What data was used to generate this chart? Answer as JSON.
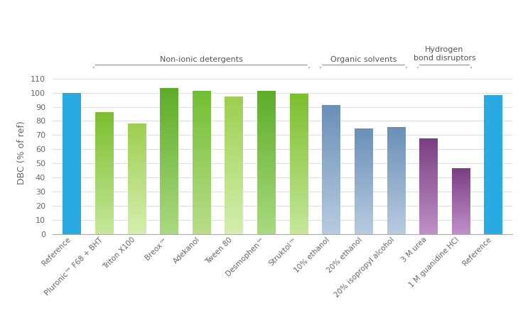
{
  "ylabel": "DBC (% of ref)",
  "categories": [
    "Reference",
    "Pluronic™ F68 + BHT",
    "Triton X100",
    "Breox™",
    "Adekanol",
    "Tween 80",
    "Desmophen™",
    "Struktol™",
    "10% ethanol",
    "20% ethanol",
    "20% isopropyl alcohol",
    "3 M urea",
    "1 M guanidine HCl",
    "Reference"
  ],
  "values": [
    99.5,
    86,
    78,
    103,
    101,
    97,
    101,
    99,
    91,
    74.5,
    75.5,
    67.5,
    46.5,
    98
  ],
  "bar_top_colors": [
    "#29ABE2",
    "#7DBF2E",
    "#9DCF50",
    "#5EAD2A",
    "#72BF35",
    "#9DCF50",
    "#5EAD2A",
    "#7DBF2E",
    "#6A90B8",
    "#6A90B8",
    "#6A90B8",
    "#7A3F82",
    "#7A3F82",
    "#29ABE2"
  ],
  "bar_bottom_colors": [
    "#29ABE2",
    "#C5E89A",
    "#D5EFB0",
    "#AADA80",
    "#BADE8A",
    "#D5EFB0",
    "#AADA80",
    "#C5E89A",
    "#B8CCE0",
    "#B8CCE0",
    "#B8CCE0",
    "#C090C8",
    "#C090C8",
    "#29ABE2"
  ],
  "ylim": [
    0,
    115
  ],
  "yticks": [
    0,
    10,
    20,
    30,
    40,
    50,
    60,
    70,
    80,
    90,
    100,
    110
  ],
  "group_info": [
    {
      "label": "Non-ionic detergents",
      "start": 1,
      "end": 7
    },
    {
      "label": "Organic solvents",
      "start": 8,
      "end": 10
    },
    {
      "label": "Hydrogen\nbond disruptors",
      "start": 11,
      "end": 12
    }
  ],
  "background_color": "#ffffff",
  "bar_width": 0.55
}
